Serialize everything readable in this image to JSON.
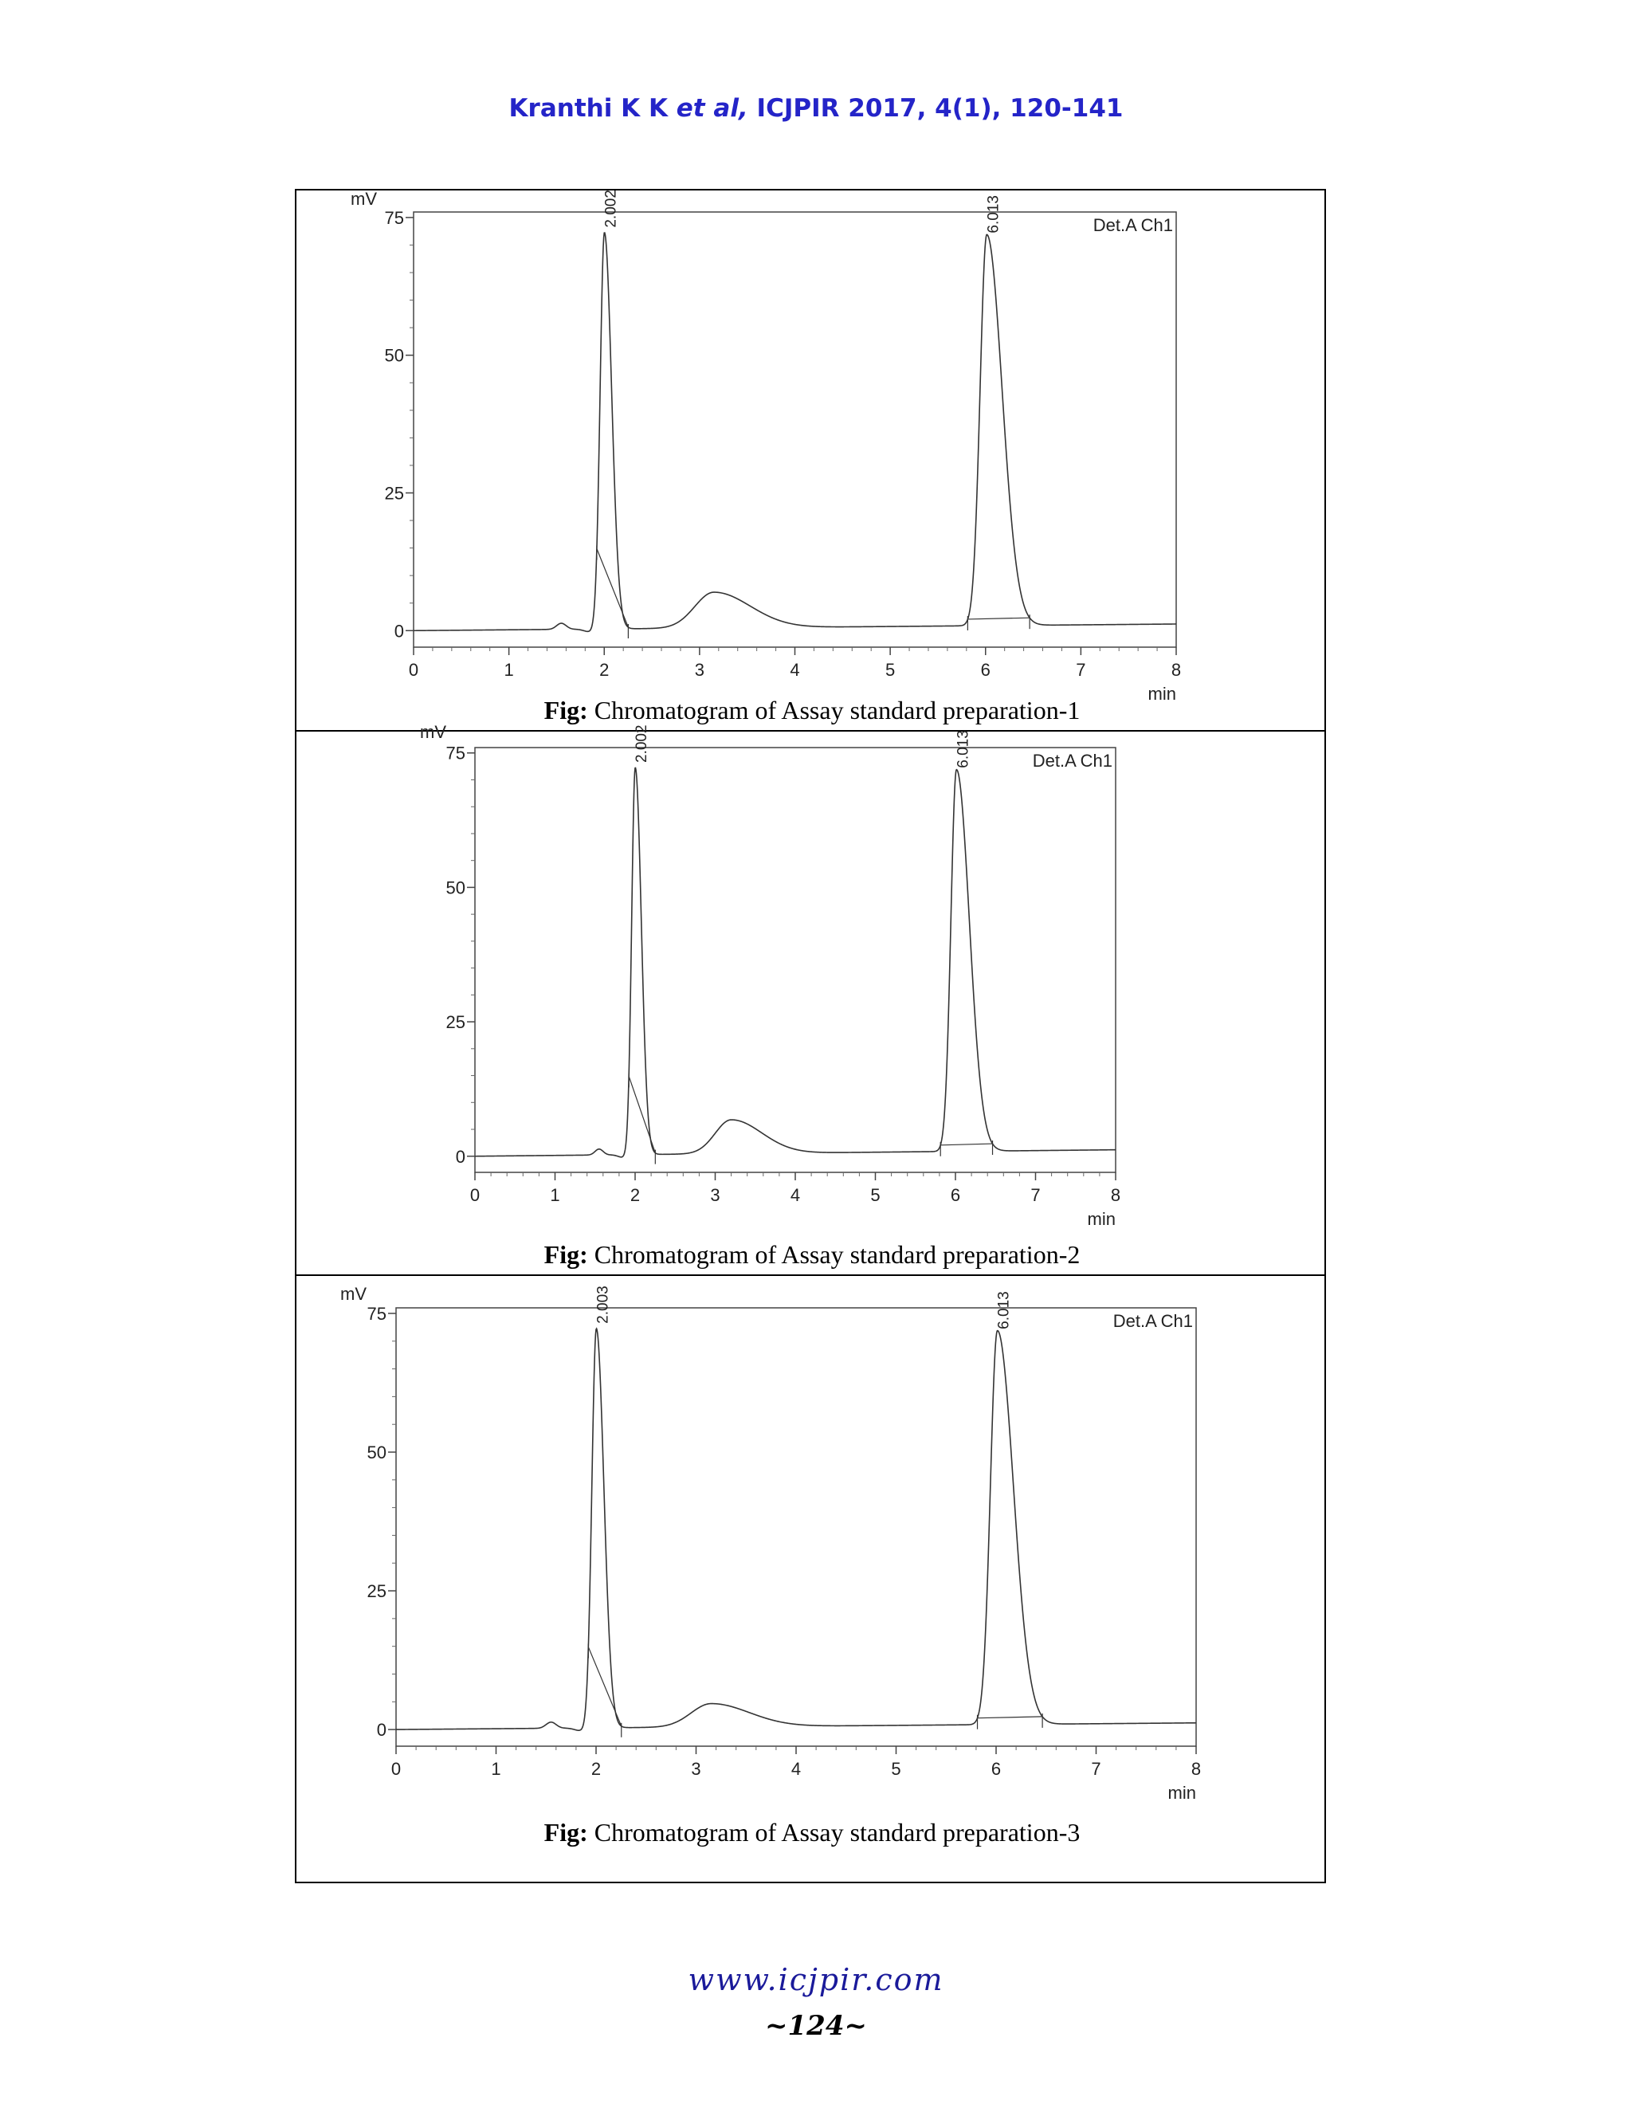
{
  "header": {
    "authors": "Kranthi K K",
    "etal": "et al,",
    "citation": "ICJPIR 2017, 4(1), 120-141"
  },
  "chart_data": [
    {
      "type": "line",
      "ylabel": "mV",
      "xlabel": "min",
      "legend": "Det.A Ch1",
      "xlim": [
        0,
        8
      ],
      "ylim": [
        -3,
        76
      ],
      "xticks": [
        0,
        1,
        2,
        3,
        4,
        5,
        6,
        7,
        8
      ],
      "yticks": [
        0,
        25,
        50,
        75
      ],
      "peaks": [
        {
          "label": "2.002",
          "rt": 2.002,
          "height": 72
        },
        {
          "label": "6.013",
          "rt": 6.013,
          "height": 71
        }
      ],
      "hump": {
        "x": 3.15,
        "height": 6.5
      },
      "caption_prefix": "Fig:",
      "caption_text": "Chromatogram of Assay standard preparation-1"
    },
    {
      "type": "line",
      "ylabel": "mV",
      "xlabel": "min",
      "legend": "Det.A Ch1",
      "xlim": [
        0,
        8
      ],
      "ylim": [
        -3,
        76
      ],
      "xticks": [
        0,
        1,
        2,
        3,
        4,
        5,
        6,
        7,
        8
      ],
      "yticks": [
        0,
        25,
        50,
        75
      ],
      "peaks": [
        {
          "label": "2.002",
          "rt": 2.002,
          "height": 72
        },
        {
          "label": "6.013",
          "rt": 6.013,
          "height": 71
        }
      ],
      "hump": {
        "x": 3.2,
        "height": 6.3
      },
      "caption_prefix": "Fig:",
      "caption_text": "Chromatogram of Assay standard preparation-2"
    },
    {
      "type": "line",
      "ylabel": "mV",
      "xlabel": "min",
      "legend": "Det.A Ch1",
      "xlim": [
        0,
        8
      ],
      "ylim": [
        -3,
        76
      ],
      "xticks": [
        0,
        1,
        2,
        3,
        4,
        5,
        6,
        7,
        8
      ],
      "yticks": [
        0,
        25,
        50,
        75
      ],
      "peaks": [
        {
          "label": "2.003",
          "rt": 2.003,
          "height": 72
        },
        {
          "label": "6.013",
          "rt": 6.013,
          "height": 71
        }
      ],
      "hump": {
        "x": 3.15,
        "height": 4.2
      },
      "caption_prefix": "Fig:",
      "caption_text": "Chromatogram of Assay standard preparation-3"
    }
  ],
  "footer": {
    "url": "www.icjpir.com",
    "page": "~124~"
  }
}
